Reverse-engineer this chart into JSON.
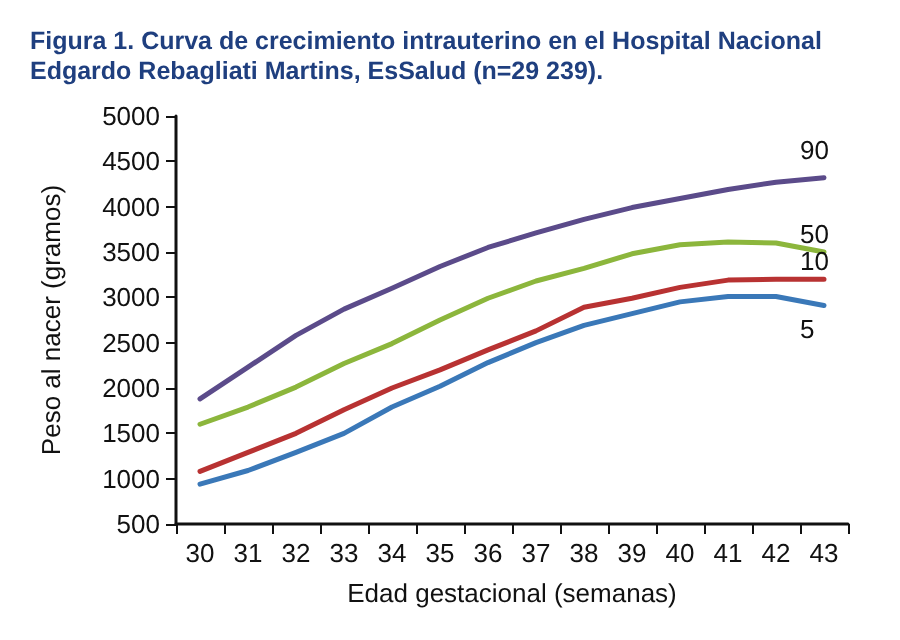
{
  "chart_data": {
    "type": "line",
    "title": "Figura 1. Curva de crecimiento intrauterino en el Hospital Nacional Edgardo Rebagliati Martins, EsSalud (n=29 239).",
    "xlabel": "Edad gestacional (semanas)",
    "ylabel": "Peso al nacer (gramos)",
    "categories": [
      "30",
      "31",
      "32",
      "33",
      "34",
      "35",
      "36",
      "37",
      "38",
      "39",
      "40",
      "41",
      "42",
      "43"
    ],
    "series": [
      {
        "name": "90",
        "color": "#5b4b8a",
        "values": [
          1880,
          2230,
          2580,
          2870,
          3100,
          3340,
          3550,
          3710,
          3860,
          3990,
          4090,
          4190,
          4270,
          4320
        ]
      },
      {
        "name": "50",
        "color": "#8cb63c",
        "values": [
          1600,
          1790,
          2010,
          2270,
          2490,
          2750,
          2990,
          3180,
          3320,
          3480,
          3580,
          3610,
          3600,
          3500
        ]
      },
      {
        "name": "10",
        "color": "#b83232",
        "values": [
          1080,
          1290,
          1500,
          1760,
          2000,
          2200,
          2420,
          2630,
          2890,
          2990,
          3110,
          3190,
          3200,
          3200
        ]
      },
      {
        "name": "5",
        "color": "#3a78b8",
        "values": [
          940,
          1090,
          1290,
          1500,
          1790,
          2020,
          2280,
          2500,
          2690,
          2820,
          2950,
          3010,
          3010,
          2910
        ]
      }
    ],
    "ylim": [
      500,
      5000
    ],
    "yticks": [
      500,
      1000,
      1500,
      2000,
      2500,
      3000,
      3500,
      4000,
      4500,
      5000
    ],
    "grid": false,
    "legend": false,
    "marker": "none",
    "line_style": "solid"
  }
}
